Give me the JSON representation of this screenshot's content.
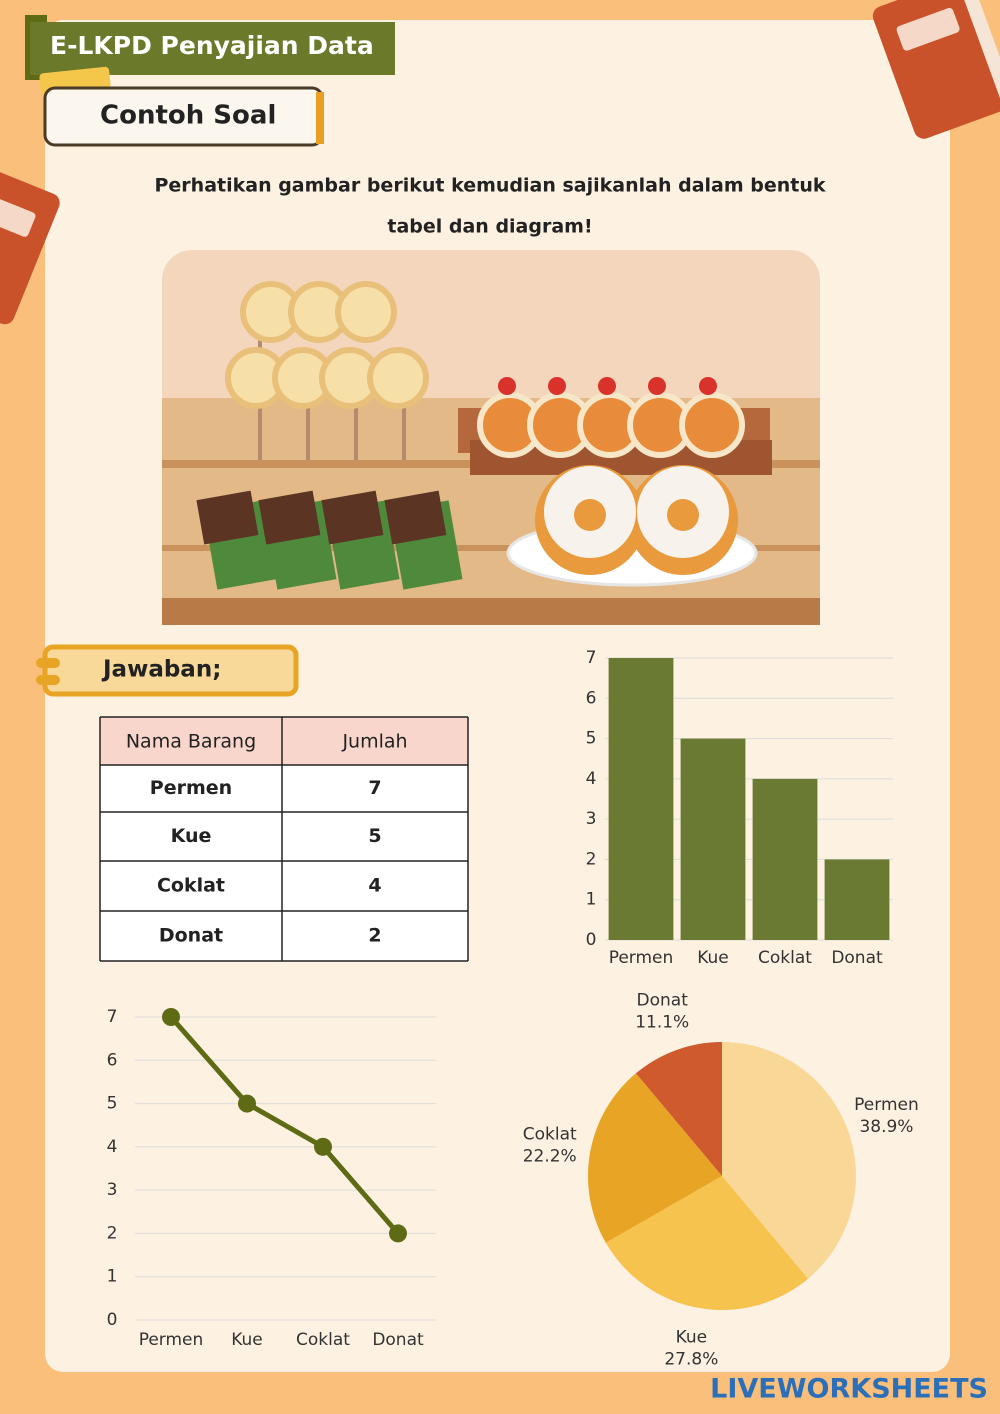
{
  "header": {
    "title": "E-LKPD Penyajian Data",
    "subtitle": "Contoh Soal"
  },
  "instruction": [
    "Perhatikan gambar berikut kemudian sajikanlah dalam bentuk",
    "tabel dan diagram!"
  ],
  "answer_label": "Jawaban;",
  "table": {
    "header": [
      "Nama Barang",
      "Jumlah"
    ],
    "rows": [
      [
        "Permen",
        7
      ],
      [
        "Kue",
        5
      ],
      [
        "Coklat",
        4
      ],
      [
        "Donat",
        2
      ]
    ]
  },
  "chart_data": [
    {
      "type": "bar",
      "categories": [
        "Permen",
        "Kue",
        "Coklat",
        "Donat"
      ],
      "values": [
        7,
        5,
        4,
        2
      ],
      "color": "#6b7a32",
      "ylim": [
        0,
        7
      ],
      "yticks": [
        0,
        1,
        2,
        3,
        4,
        5,
        6,
        7
      ],
      "grid": true
    },
    {
      "type": "line",
      "categories": [
        "Permen",
        "Kue",
        "Coklat",
        "Donat"
      ],
      "values": [
        7,
        5,
        4,
        2
      ],
      "color": "#5e6b14",
      "ylim": [
        0,
        7
      ],
      "yticks": [
        0,
        1,
        2,
        3,
        4,
        5,
        6,
        7
      ],
      "grid": true
    },
    {
      "type": "pie",
      "categories": [
        "Permen",
        "Kue",
        "Coklat",
        "Donat"
      ],
      "values": [
        38.9,
        27.8,
        22.2,
        11.1
      ],
      "value_labels": [
        "38.9%",
        "27.8%",
        "22.2%",
        "11.1%"
      ],
      "colors": [
        "#f9d796",
        "#f7c34f",
        "#e8a424",
        "#cf5a2e"
      ]
    }
  ],
  "logo": "LIVEWORKSHEETS"
}
